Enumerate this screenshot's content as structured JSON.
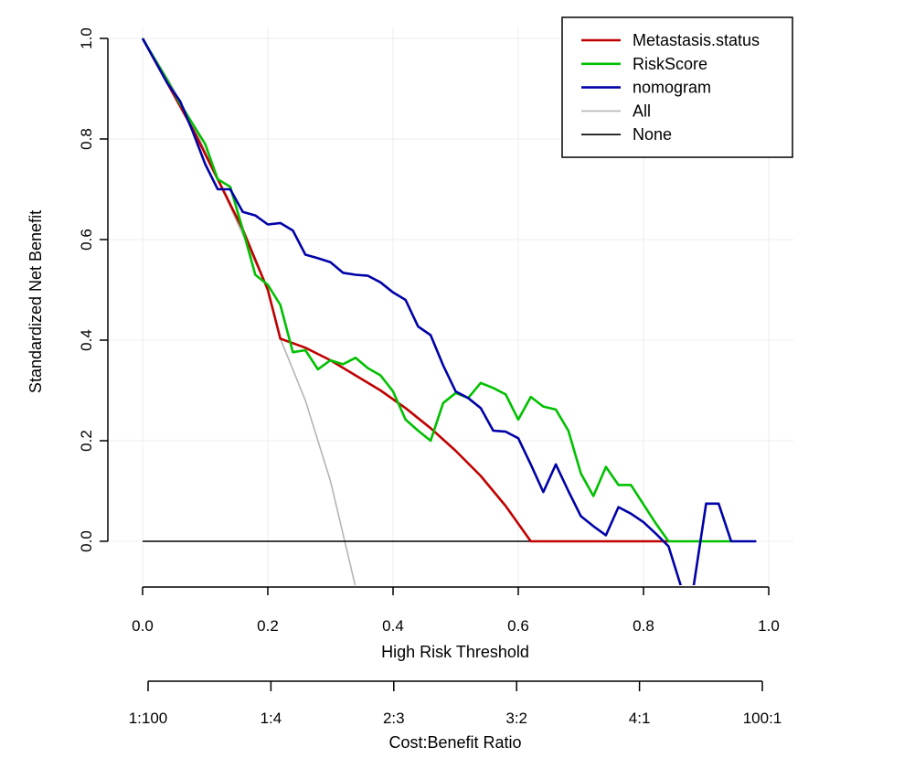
{
  "chart_data": {
    "type": "line",
    "xlabel": "High Risk Threshold",
    "ylabel": "Standardized Net Benefit",
    "secondary_xlabel": "Cost:Benefit Ratio",
    "xlim": [
      0,
      1
    ],
    "ylim": [
      -0.1,
      1.0
    ],
    "x_ticks": [
      "0.0",
      "0.2",
      "0.4",
      "0.6",
      "0.8",
      "1.0"
    ],
    "y_ticks": [
      "0.0",
      "0.2",
      "0.4",
      "0.6",
      "0.8",
      "1.0"
    ],
    "cost_benefit_ticks": [
      "1:100",
      "1:4",
      "2:3",
      "3:2",
      "4:1",
      "100:1"
    ],
    "grid": true,
    "legend_position": "top-right",
    "series": [
      {
        "name": "Metastasis.status",
        "color": "#c00000",
        "points": [
          [
            0.0,
            1.0
          ],
          [
            0.04,
            0.91
          ],
          [
            0.08,
            0.82
          ],
          [
            0.12,
            0.72
          ],
          [
            0.16,
            0.62
          ],
          [
            0.2,
            0.5
          ],
          [
            0.22,
            0.403
          ],
          [
            0.26,
            0.385
          ],
          [
            0.3,
            0.36
          ],
          [
            0.34,
            0.33
          ],
          [
            0.38,
            0.3
          ],
          [
            0.42,
            0.265
          ],
          [
            0.46,
            0.225
          ],
          [
            0.5,
            0.18
          ],
          [
            0.54,
            0.13
          ],
          [
            0.58,
            0.07
          ],
          [
            0.62,
            0.0
          ],
          [
            0.7,
            0.0
          ],
          [
            0.84,
            0.0
          ]
        ]
      },
      {
        "name": "RiskScore",
        "color": "#00c000",
        "points": [
          [
            0.0,
            1.0
          ],
          [
            0.04,
            0.915
          ],
          [
            0.06,
            0.87
          ],
          [
            0.08,
            0.83
          ],
          [
            0.1,
            0.79
          ],
          [
            0.12,
            0.72
          ],
          [
            0.14,
            0.705
          ],
          [
            0.16,
            0.62
          ],
          [
            0.18,
            0.53
          ],
          [
            0.2,
            0.51
          ],
          [
            0.22,
            0.47
          ],
          [
            0.24,
            0.376
          ],
          [
            0.26,
            0.38
          ],
          [
            0.28,
            0.342
          ],
          [
            0.3,
            0.36
          ],
          [
            0.32,
            0.352
          ],
          [
            0.34,
            0.365
          ],
          [
            0.36,
            0.344
          ],
          [
            0.38,
            0.33
          ],
          [
            0.4,
            0.298
          ],
          [
            0.42,
            0.242
          ],
          [
            0.44,
            0.22
          ],
          [
            0.46,
            0.2
          ],
          [
            0.48,
            0.275
          ],
          [
            0.5,
            0.295
          ],
          [
            0.52,
            0.285
          ],
          [
            0.54,
            0.315
          ],
          [
            0.56,
            0.305
          ],
          [
            0.58,
            0.292
          ],
          [
            0.6,
            0.242
          ],
          [
            0.62,
            0.287
          ],
          [
            0.64,
            0.268
          ],
          [
            0.66,
            0.262
          ],
          [
            0.68,
            0.22
          ],
          [
            0.7,
            0.135
          ],
          [
            0.72,
            0.09
          ],
          [
            0.74,
            0.148
          ],
          [
            0.76,
            0.112
          ],
          [
            0.78,
            0.112
          ],
          [
            0.82,
            0.035
          ],
          [
            0.84,
            0.0
          ],
          [
            0.94,
            0.0
          ]
        ]
      },
      {
        "name": "nomogram",
        "color": "#0000a8",
        "points": [
          [
            0.0,
            1.0
          ],
          [
            0.04,
            0.91
          ],
          [
            0.06,
            0.875
          ],
          [
            0.08,
            0.815
          ],
          [
            0.1,
            0.75
          ],
          [
            0.12,
            0.7
          ],
          [
            0.14,
            0.7
          ],
          [
            0.16,
            0.655
          ],
          [
            0.18,
            0.648
          ],
          [
            0.2,
            0.63
          ],
          [
            0.22,
            0.633
          ],
          [
            0.24,
            0.618
          ],
          [
            0.26,
            0.57
          ],
          [
            0.28,
            0.563
          ],
          [
            0.3,
            0.555
          ],
          [
            0.32,
            0.534
          ],
          [
            0.34,
            0.53
          ],
          [
            0.36,
            0.528
          ],
          [
            0.38,
            0.515
          ],
          [
            0.4,
            0.495
          ],
          [
            0.42,
            0.48
          ],
          [
            0.44,
            0.427
          ],
          [
            0.46,
            0.41
          ],
          [
            0.48,
            0.35
          ],
          [
            0.5,
            0.298
          ],
          [
            0.52,
            0.285
          ],
          [
            0.54,
            0.265
          ],
          [
            0.56,
            0.22
          ],
          [
            0.58,
            0.218
          ],
          [
            0.6,
            0.205
          ],
          [
            0.62,
            0.153
          ],
          [
            0.64,
            0.098
          ],
          [
            0.66,
            0.153
          ],
          [
            0.68,
            0.1
          ],
          [
            0.7,
            0.05
          ],
          [
            0.72,
            0.03
          ],
          [
            0.74,
            0.012
          ],
          [
            0.76,
            0.068
          ],
          [
            0.78,
            0.055
          ],
          [
            0.8,
            0.038
          ],
          [
            0.82,
            0.015
          ],
          [
            0.84,
            -0.01
          ],
          [
            0.86,
            -0.09
          ],
          [
            0.88,
            -0.09
          ],
          [
            0.9,
            0.075
          ],
          [
            0.92,
            0.075
          ],
          [
            0.94,
            0.0
          ],
          [
            0.98,
            0.0
          ]
        ]
      },
      {
        "name": "All",
        "color": "#b4b4b4",
        "points": [
          [
            0.0,
            1.0
          ],
          [
            0.04,
            0.92
          ],
          [
            0.08,
            0.83
          ],
          [
            0.12,
            0.72
          ],
          [
            0.16,
            0.61
          ],
          [
            0.2,
            0.5
          ],
          [
            0.22,
            0.403
          ],
          [
            0.26,
            0.28
          ],
          [
            0.3,
            0.12
          ],
          [
            0.34,
            -0.09
          ]
        ]
      },
      {
        "name": "None",
        "color": "#000000",
        "points": [
          [
            0.0,
            0.0
          ],
          [
            0.98,
            0.0
          ]
        ]
      }
    ]
  }
}
